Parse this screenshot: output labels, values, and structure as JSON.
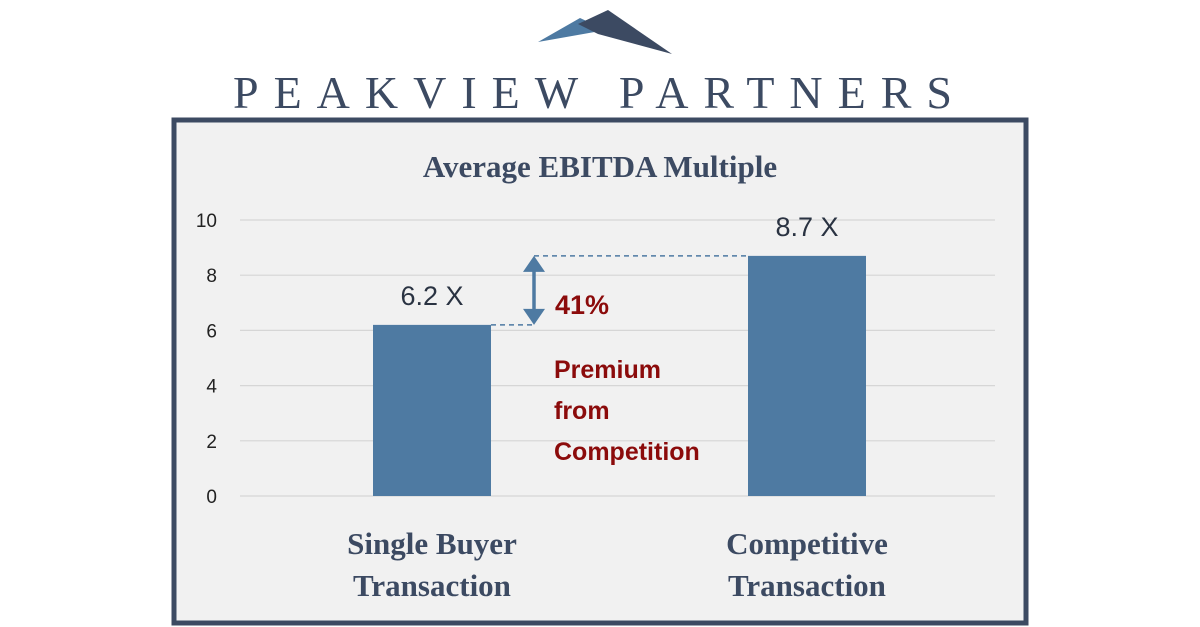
{
  "brand": {
    "name": "PEAKVIEW PARTNERS",
    "colors": {
      "dark": "#3c4a62",
      "light": "#4e7aa2"
    }
  },
  "chart_data": {
    "type": "bar",
    "title": "Average EBITDA Multiple",
    "categories": [
      [
        "Single Buyer",
        "Transaction"
      ],
      [
        "Competitive",
        "Transaction"
      ]
    ],
    "values": [
      6.2,
      8.7
    ],
    "data_labels": [
      "6.2 X",
      "8.7 X"
    ],
    "yticks": [
      0,
      2,
      4,
      6,
      8,
      10
    ],
    "ylim": [
      0,
      10
    ],
    "grid": true,
    "bar_color": "#4e7aa2",
    "annotation": {
      "percent": "41%",
      "lines": [
        "Premium",
        "from",
        "Competition"
      ],
      "color": "#8b0b0b"
    }
  }
}
